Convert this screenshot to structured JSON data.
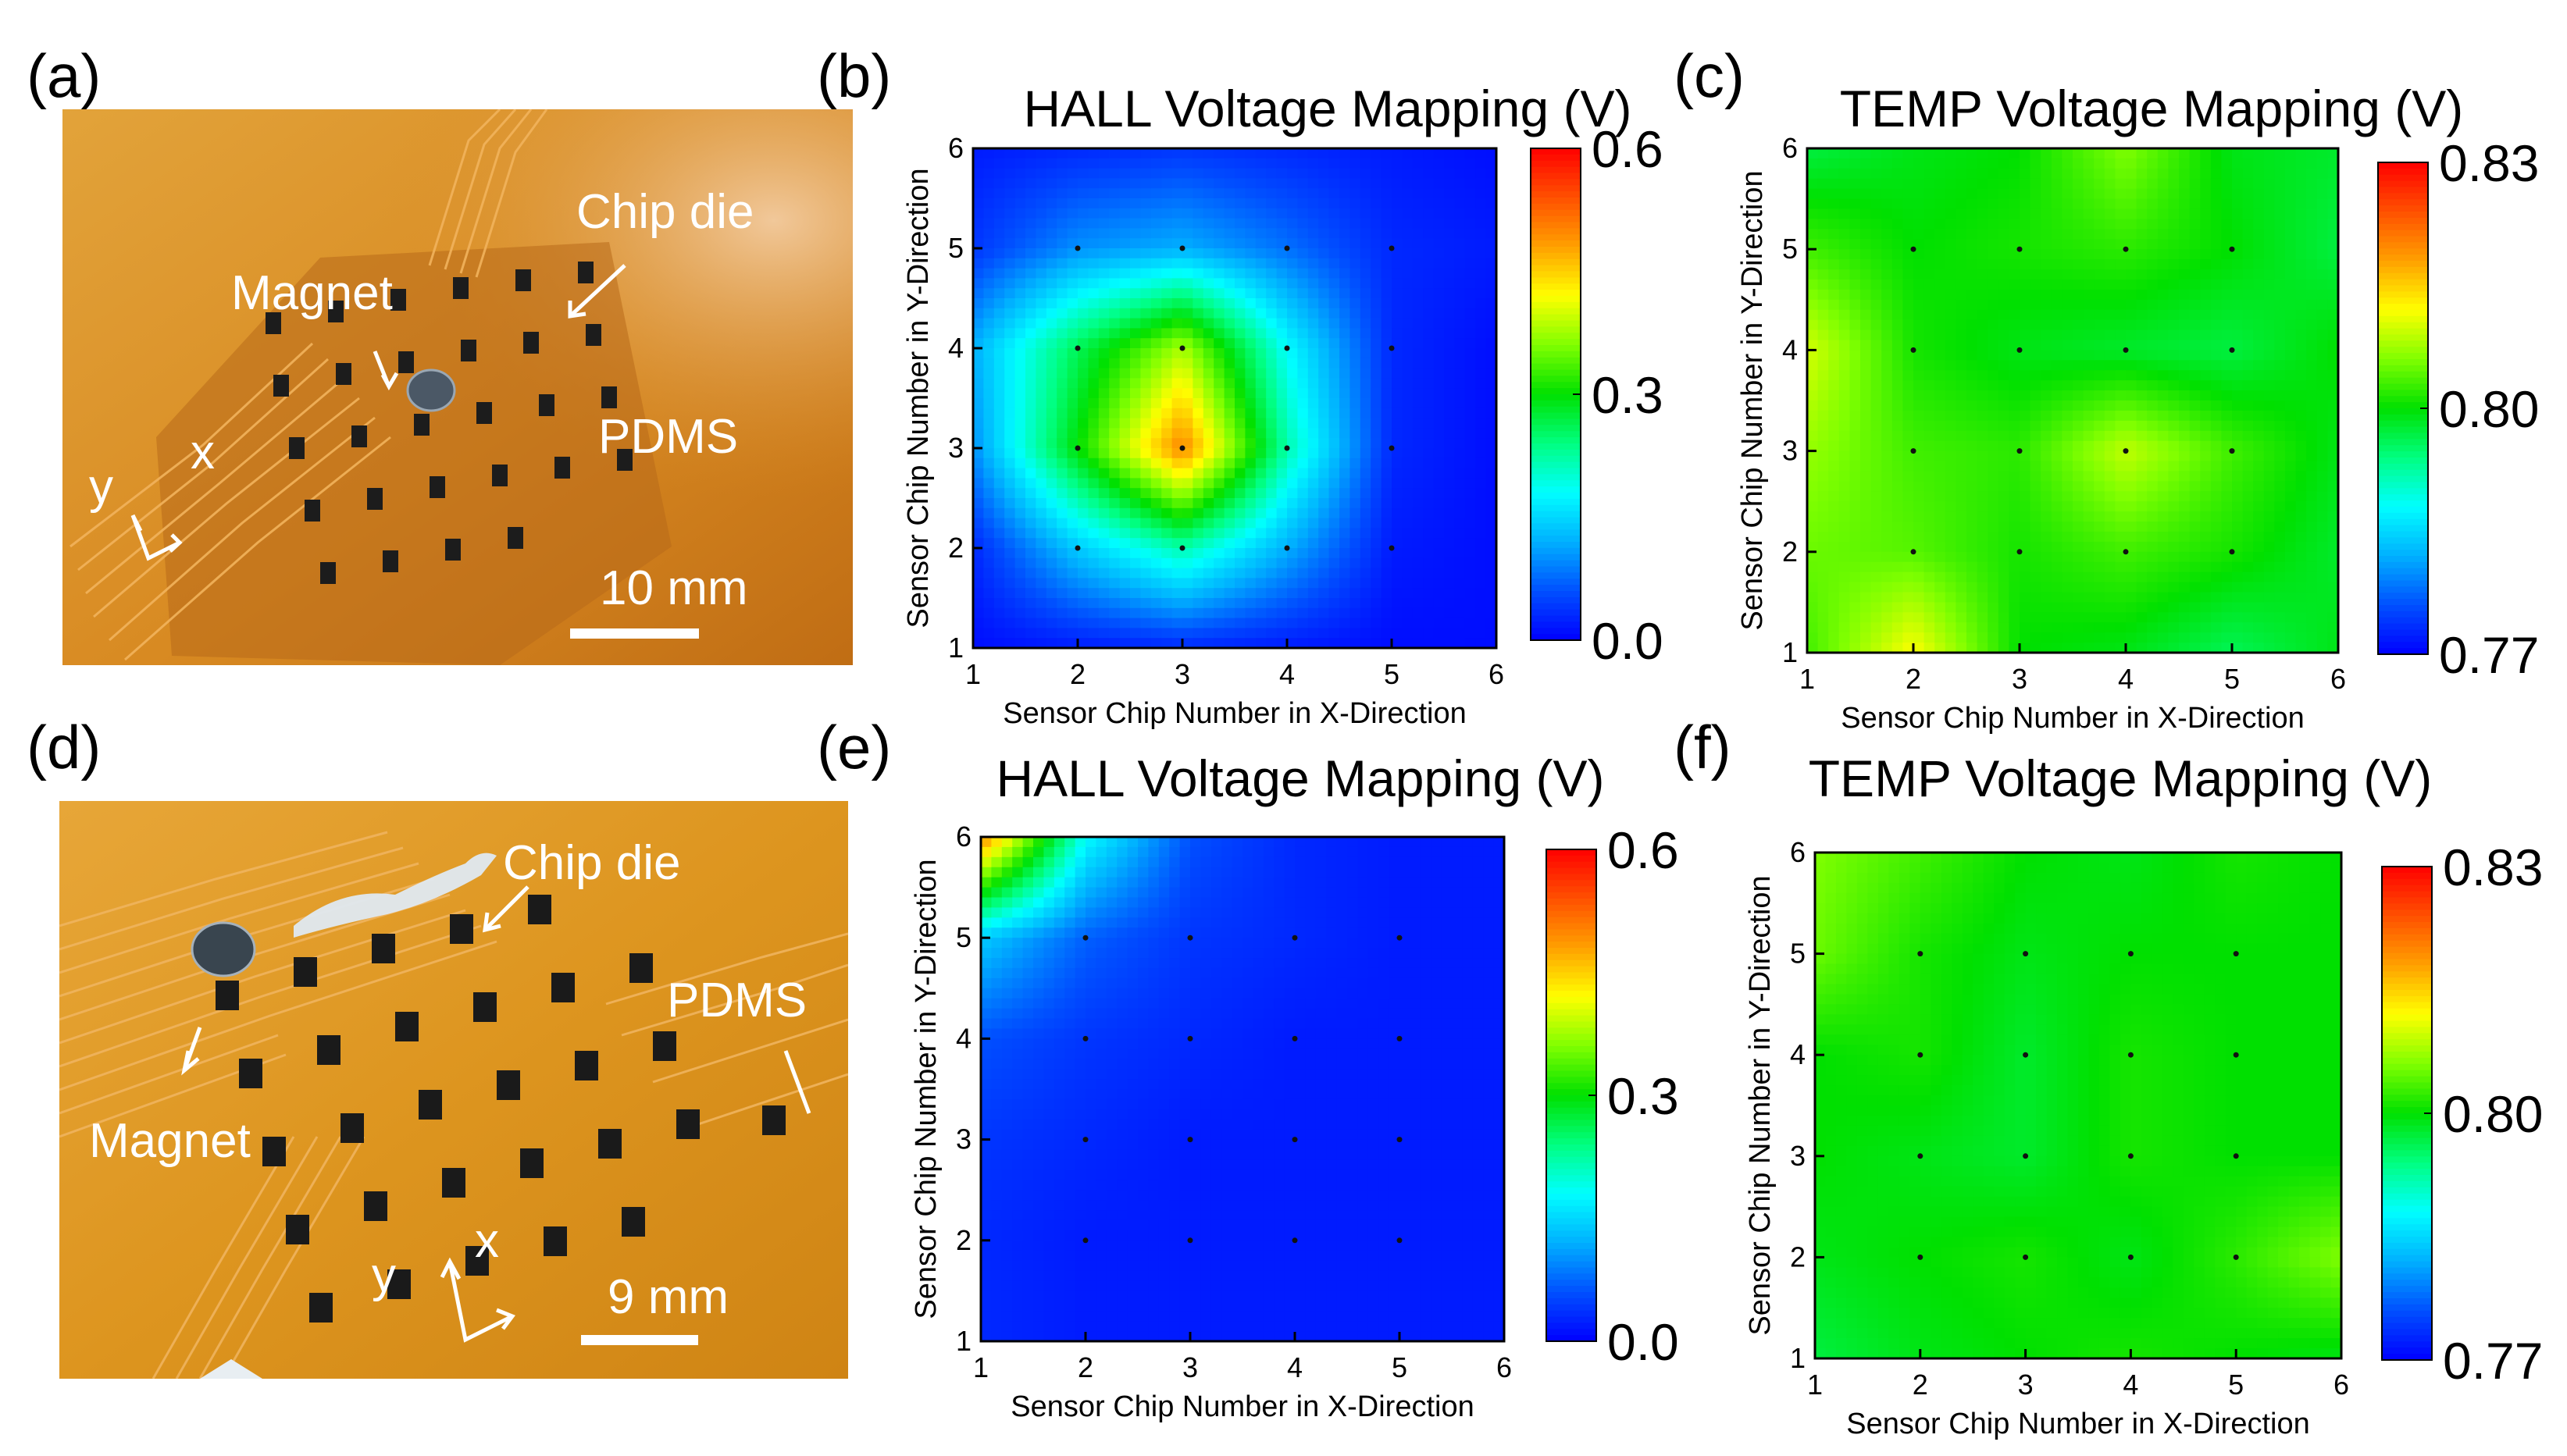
{
  "panels": {
    "a": "(a)",
    "b": "(b)",
    "c": "(c)",
    "d": "(d)",
    "e": "(e)",
    "f": "(f)"
  },
  "photo_a": {
    "chip_die": "Chip die",
    "magnet": "Magnet",
    "pdms": "PDMS",
    "axis_x": "x",
    "axis_y": "y",
    "scale": "10 mm"
  },
  "photo_d": {
    "chip_die": "Chip die",
    "magnet": "Magnet",
    "pdms": "PDMS",
    "axis_x": "x",
    "axis_y": "y",
    "scale": "9 mm"
  },
  "colors": {
    "colormap": [
      "#0000ff",
      "#0050ff",
      "#00b0ff",
      "#00ffff",
      "#00ff80",
      "#00e000",
      "#80ff00",
      "#ffff00",
      "#ffa000",
      "#ff5000",
      "#ff0000"
    ],
    "photo_bg": "#d98a1e",
    "trace": "#e8a03a",
    "chip": "#1e1e1e"
  },
  "chart_data": [
    {
      "id": "b",
      "type": "heatmap",
      "title": "HALL Voltage Mapping (V)",
      "xlabel": "Sensor Chip Number in X-Direction",
      "ylabel": "Sensor Chip Number in Y-Direction",
      "x": [
        1,
        2,
        3,
        4,
        5,
        6
      ],
      "y": [
        1,
        2,
        3,
        4,
        5,
        6
      ],
      "xlim": [
        1,
        6
      ],
      "ylim": [
        1,
        6
      ],
      "clim": [
        0.0,
        0.6
      ],
      "colorbar_ticks": [
        "0.0",
        "0.3",
        "0.6"
      ],
      "colorbar_tick_values": [
        0.0,
        0.3,
        0.6
      ],
      "values": [
        [
          0.01,
          0.02,
          0.03,
          0.02,
          0.01,
          0.01
        ],
        [
          0.03,
          0.14,
          0.22,
          0.12,
          0.02,
          0.01
        ],
        [
          0.1,
          0.3,
          0.5,
          0.22,
          0.03,
          0.01
        ],
        [
          0.12,
          0.26,
          0.38,
          0.18,
          0.03,
          0.01
        ],
        [
          0.04,
          0.1,
          0.12,
          0.08,
          0.03,
          0.02
        ],
        [
          0.02,
          0.03,
          0.04,
          0.03,
          0.02,
          0.01
        ]
      ]
    },
    {
      "id": "c",
      "type": "heatmap",
      "title": "TEMP Voltage Mapping (V)",
      "xlabel": "Sensor Chip Number in X-Direction",
      "ylabel": "Sensor Chip Number in Y-Direction",
      "x": [
        1,
        2,
        3,
        4,
        5,
        6
      ],
      "y": [
        1,
        2,
        3,
        4,
        5,
        6
      ],
      "xlim": [
        1,
        6
      ],
      "ylim": [
        1,
        6
      ],
      "clim": [
        0.77,
        0.83
      ],
      "colorbar_ticks": [
        "0.77",
        "0.80",
        "0.83"
      ],
      "colorbar_tick_values": [
        0.77,
        0.8,
        0.83
      ],
      "values": [
        [
          0.803,
          0.812,
          0.8,
          0.799,
          0.796,
          0.799
        ],
        [
          0.805,
          0.804,
          0.801,
          0.803,
          0.801,
          0.798
        ],
        [
          0.807,
          0.803,
          0.802,
          0.809,
          0.803,
          0.799
        ],
        [
          0.81,
          0.801,
          0.799,
          0.798,
          0.797,
          0.8
        ],
        [
          0.803,
          0.8,
          0.801,
          0.802,
          0.8,
          0.797
        ],
        [
          0.797,
          0.799,
          0.8,
          0.806,
          0.799,
          0.798
        ]
      ]
    },
    {
      "id": "e",
      "type": "heatmap",
      "title": "HALL Voltage Mapping (V)",
      "xlabel": "Sensor Chip Number in X-Direction",
      "ylabel": "Sensor Chip Number in Y-Direction",
      "x": [
        1,
        2,
        3,
        4,
        5,
        6
      ],
      "y": [
        1,
        2,
        3,
        4,
        5,
        6
      ],
      "xlim": [
        1,
        6
      ],
      "ylim": [
        1,
        6
      ],
      "clim": [
        0.0,
        0.6
      ],
      "colorbar_ticks": [
        "0.0",
        "0.3",
        "0.6"
      ],
      "colorbar_tick_values": [
        0.0,
        0.3,
        0.6
      ],
      "values": [
        [
          0.03,
          0.02,
          0.02,
          0.02,
          0.02,
          0.02
        ],
        [
          0.03,
          0.02,
          0.02,
          0.02,
          0.02,
          0.02
        ],
        [
          0.04,
          0.03,
          0.02,
          0.02,
          0.02,
          0.02
        ],
        [
          0.06,
          0.04,
          0.03,
          0.02,
          0.02,
          0.02
        ],
        [
          0.14,
          0.07,
          0.04,
          0.03,
          0.02,
          0.02
        ],
        [
          0.5,
          0.18,
          0.06,
          0.03,
          0.02,
          0.02
        ]
      ]
    },
    {
      "id": "f",
      "type": "heatmap",
      "title": "TEMP Voltage Mapping (V)",
      "xlabel": "Sensor Chip Number in X-Direction",
      "ylabel": "Sensor Chip Number in Y-Direction",
      "x": [
        1,
        2,
        3,
        4,
        5,
        6
      ],
      "y": [
        1,
        2,
        3,
        4,
        5,
        6
      ],
      "xlim": [
        1,
        6
      ],
      "ylim": [
        1,
        6
      ],
      "clim": [
        0.77,
        0.83
      ],
      "colorbar_ticks": [
        "0.77",
        "0.80",
        "0.83"
      ],
      "colorbar_tick_values": [
        0.77,
        0.8,
        0.83
      ],
      "values": [
        [
          0.797,
          0.799,
          0.8,
          0.801,
          0.8,
          0.799
        ],
        [
          0.799,
          0.8,
          0.801,
          0.799,
          0.802,
          0.806
        ],
        [
          0.8,
          0.799,
          0.798,
          0.801,
          0.8,
          0.8
        ],
        [
          0.8,
          0.801,
          0.798,
          0.801,
          0.8,
          0.8
        ],
        [
          0.805,
          0.801,
          0.799,
          0.8,
          0.8,
          0.8
        ],
        [
          0.806,
          0.803,
          0.8,
          0.799,
          0.801,
          0.8
        ]
      ]
    }
  ]
}
